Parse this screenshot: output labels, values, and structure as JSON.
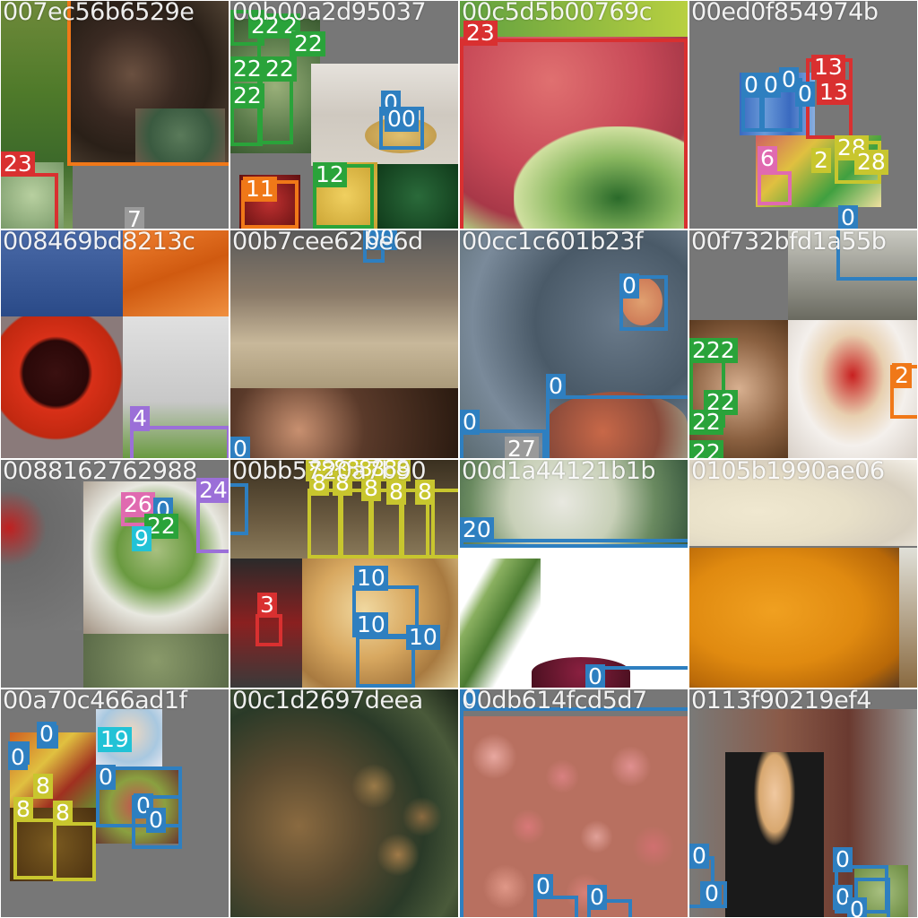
{
  "colors": {
    "cls_0": "#2e7fc0",
    "cls_2": "#2aa33a",
    "cls_3": "#d93030",
    "cls_4": "#9b6fd8",
    "cls_6": "#e06ab0",
    "cls_7": "#9a9a9a",
    "cls_8": "#c8c62e",
    "cls_9": "#22c2d6",
    "cls_10": "#2e7fc0",
    "cls_11": "#f07818",
    "cls_12": "#2aa33a",
    "cls_13": "#d93030",
    "cls_19": "#22c2d6",
    "cls_20": "#2e7fc0",
    "cls_22": "#2aa33a",
    "cls_23": "#d93030",
    "cls_24": "#9b6fd8",
    "cls_26": "#e06ab0",
    "cls_27": "#9a9a9a",
    "cls_28": "#c8c62e",
    "padding_gray": "#777777"
  },
  "tiles": [
    {
      "id": "007ec56b6529e",
      "labels": [
        "23",
        "7"
      ]
    },
    {
      "id": "00b00a2d95037",
      "labels": [
        "22",
        "2",
        "22",
        "22",
        "22",
        "22",
        "0",
        "00",
        "12",
        "11"
      ]
    },
    {
      "id": "00c5d5b00769c",
      "labels": [
        "23"
      ]
    },
    {
      "id": "00ed0f854974b",
      "labels": [
        "0",
        "0",
        "0",
        "0",
        "13",
        "13",
        "6",
        "28",
        "2",
        "28",
        "0"
      ]
    },
    {
      "id": "008469bd8213c",
      "labels": [
        "4"
      ]
    },
    {
      "id": "00b7cee62be6d",
      "labels": [
        "00",
        "0"
      ]
    },
    {
      "id": "00cc1c601b23f",
      "labels": [
        "0",
        "0",
        "0",
        "27"
      ]
    },
    {
      "id": "00f732bfd1a55b",
      "labels": [
        "222",
        "22",
        "22",
        "22",
        "2"
      ]
    },
    {
      "id": "0088162762988",
      "labels": [
        "26",
        "0",
        "22",
        "9",
        "24"
      ]
    },
    {
      "id": "00bb5720a7b90",
      "labels": [
        "88888888",
        "8",
        "8",
        "8",
        "8",
        "8",
        "3",
        "10",
        "10",
        "10"
      ]
    },
    {
      "id": "00d1a44121b1b",
      "labels": [
        "20",
        "0"
      ]
    },
    {
      "id": "0105b1990ae06",
      "labels": []
    },
    {
      "id": "00a70c466ad1f",
      "labels": [
        "0",
        "0",
        "8",
        "8",
        "8",
        "19",
        "0",
        "0",
        "0"
      ]
    },
    {
      "id": "00c1d2697deea",
      "labels": []
    },
    {
      "id": "00db614fcd5d7",
      "labels": [
        "0",
        "0",
        "0"
      ]
    },
    {
      "id": "0113f90219ef4",
      "labels": [
        "0",
        "0",
        "0",
        "0",
        "0"
      ]
    }
  ]
}
